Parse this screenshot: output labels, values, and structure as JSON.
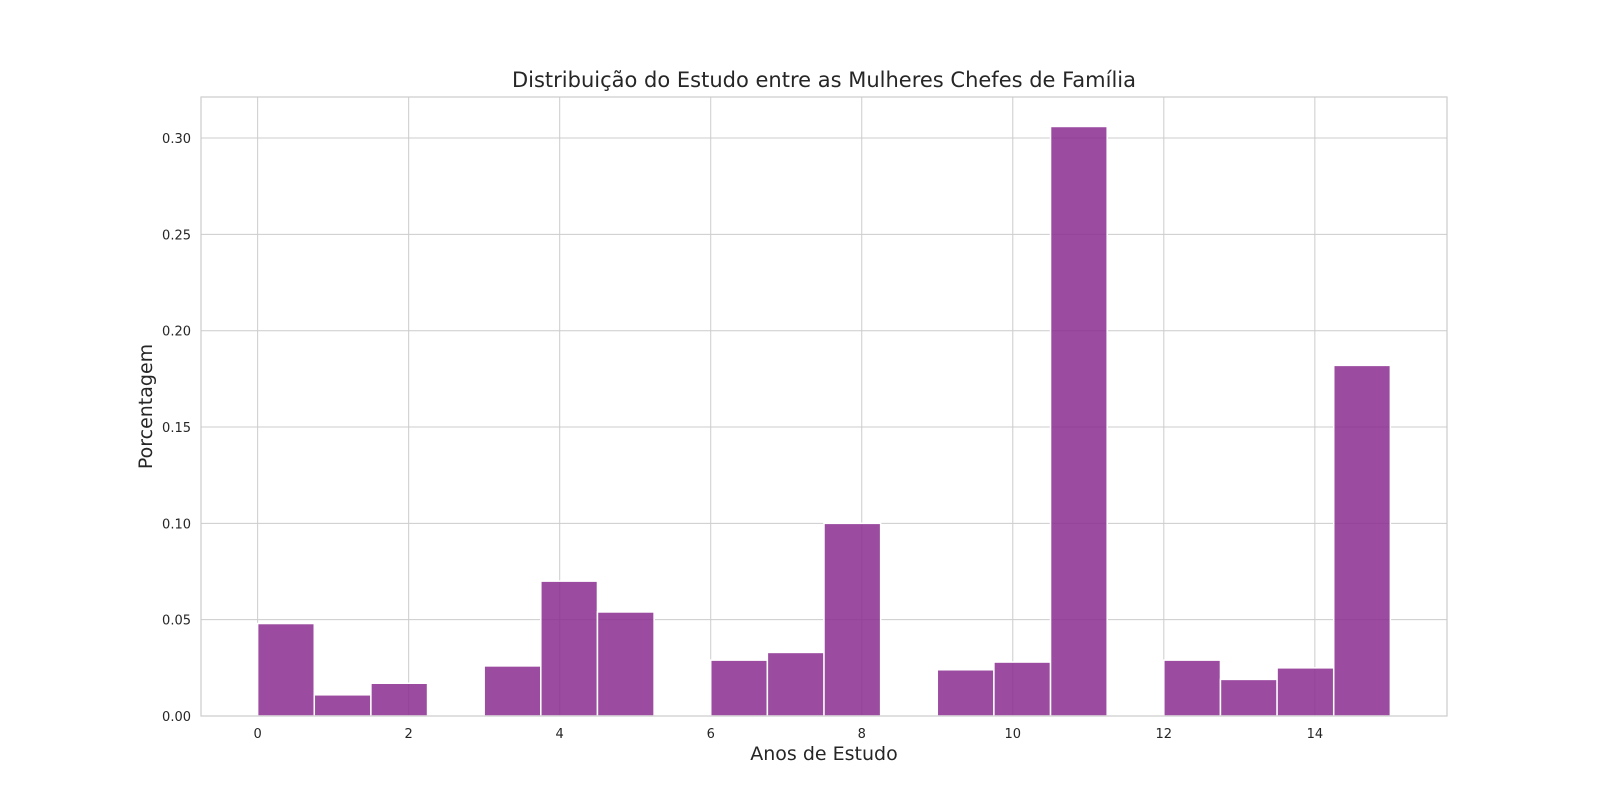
{
  "chart_data": {
    "type": "bar",
    "title": "Distribuição do Estudo entre as Mulheres Chefes de Família",
    "xlabel": "Anos de Estudo",
    "ylabel": "Porcentagem",
    "bins": [
      {
        "x0": 0.0,
        "x1": 0.75,
        "value": 0.048
      },
      {
        "x0": 0.75,
        "x1": 1.5,
        "value": 0.011
      },
      {
        "x0": 1.5,
        "x1": 2.25,
        "value": 0.017
      },
      {
        "x0": 3.0,
        "x1": 3.75,
        "value": 0.026
      },
      {
        "x0": 3.75,
        "x1": 4.5,
        "value": 0.07
      },
      {
        "x0": 4.5,
        "x1": 5.25,
        "value": 0.054
      },
      {
        "x0": 6.0,
        "x1": 6.75,
        "value": 0.029
      },
      {
        "x0": 6.75,
        "x1": 7.5,
        "value": 0.033
      },
      {
        "x0": 7.5,
        "x1": 8.25,
        "value": 0.1
      },
      {
        "x0": 9.0,
        "x1": 9.75,
        "value": 0.024
      },
      {
        "x0": 9.75,
        "x1": 10.5,
        "value": 0.028
      },
      {
        "x0": 10.5,
        "x1": 11.25,
        "value": 0.306
      },
      {
        "x0": 12.0,
        "x1": 12.75,
        "value": 0.029
      },
      {
        "x0": 12.75,
        "x1": 13.5,
        "value": 0.019
      },
      {
        "x0": 13.5,
        "x1": 14.25,
        "value": 0.025
      },
      {
        "x0": 14.25,
        "x1": 15.0,
        "value": 0.182
      }
    ],
    "xlim": [
      -0.75,
      15.75
    ],
    "ylim": [
      0,
      0.3213
    ],
    "xticks": [
      0,
      2,
      4,
      6,
      8,
      10,
      12,
      14
    ],
    "yticks": [
      0.0,
      0.05,
      0.1,
      0.15,
      0.2,
      0.25,
      0.3
    ],
    "ytick_labels": [
      "0.00",
      "0.05",
      "0.10",
      "0.15",
      "0.20",
      "0.25",
      "0.30"
    ],
    "xtick_labels": [
      "0",
      "2",
      "4",
      "6",
      "8",
      "10",
      "12",
      "14"
    ],
    "grid": true,
    "bar_color": "#8b2d8f"
  }
}
